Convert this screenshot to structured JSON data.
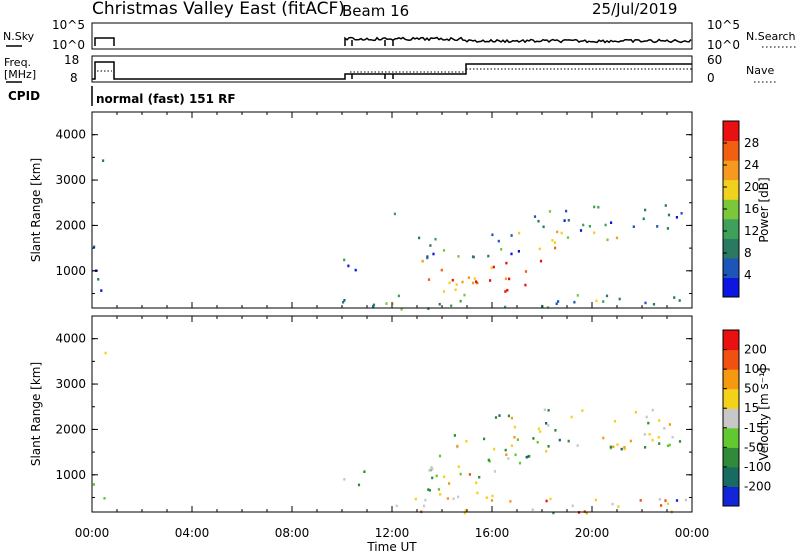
{
  "header": {
    "title": "Christmas Valley East (fitACF)",
    "beam": "Beam 16",
    "date": "25/Jul/2019"
  },
  "status_panels": {
    "nsky_label": "N.Sky",
    "nsky_ticks": [
      "10^5",
      "10^0"
    ],
    "nsearch_label": "N.Search",
    "nsearch_ticks": [
      "10^5",
      "10^0"
    ],
    "freq_label": "Freq.",
    "freq_unit": "[MHz]",
    "freq_ticks": [
      "18",
      "8"
    ],
    "nave_label": "Nave",
    "nave_ticks": [
      "60",
      "0"
    ],
    "cpid_label": "CPID",
    "cpid_value": "normal (fast) 151 RF"
  },
  "chart_data": [
    {
      "type": "heatmap",
      "name": "Power",
      "ylabel": "Slant Range [km]",
      "yticks": [
        "4000",
        "3000",
        "2000",
        "1000"
      ],
      "ylim": [
        180,
        4500
      ],
      "colorbar_label": "Power [dB]",
      "colorbar_ticks": [
        "28",
        "24",
        "20",
        "16",
        "12",
        "8",
        "4"
      ],
      "colors": [
        "#0b16e0",
        "#1f55b8",
        "#2a7a62",
        "#3fa05a",
        "#7ac83a",
        "#f0d21e",
        "#f59a1e",
        "#f06010",
        "#e81010"
      ],
      "regions": [
        {
          "t0": 0.3,
          "t1": 0.5,
          "r0": 2950,
          "r1": 3850,
          "level": 0.45
        },
        {
          "t0": 0.0,
          "t1": 0.5,
          "r0": 500,
          "r1": 1700,
          "level": 0.1
        },
        {
          "t0": 10.0,
          "t1": 10.9,
          "r0": 800,
          "r1": 1300,
          "level": 0.15
        },
        {
          "t0": 12.0,
          "t1": 12.6,
          "r0": 2150,
          "r1": 2450,
          "level": 0.2
        },
        {
          "t0": 13.0,
          "t1": 15.3,
          "r0": 500,
          "r1": 1300,
          "level": 0.8
        },
        {
          "t0": 15.3,
          "t1": 18.0,
          "r0": 500,
          "r1": 1300,
          "level": 0.85
        },
        {
          "t0": 13.0,
          "t1": 17.5,
          "r0": 1300,
          "r1": 1900,
          "level": 0.3
        },
        {
          "t0": 16.5,
          "t1": 21.0,
          "r0": 1500,
          "r1": 1900,
          "level": 0.55
        },
        {
          "t0": 17.5,
          "t1": 23.6,
          "r0": 1900,
          "r1": 2500,
          "level": 0.3
        },
        {
          "t0": 10.0,
          "t1": 24.0,
          "r0": 180,
          "r1": 500,
          "level": 0.35
        }
      ]
    },
    {
      "type": "heatmap",
      "name": "Velocity",
      "ylabel": "Slant Range [km]",
      "yticks": [
        "4000",
        "3000",
        "2000",
        "1000"
      ],
      "ylim": [
        180,
        4500
      ],
      "xlabel": "Time UT",
      "xticks": [
        "00:00",
        "04:00",
        "08:00",
        "12:00",
        "16:00",
        "20:00",
        "00:00"
      ],
      "xlim": [
        0,
        24
      ],
      "colorbar_label": "Velocity [m s⁻¹]",
      "colorbar_ticks": [
        "200",
        "100",
        "50",
        "15",
        "-15",
        "-50",
        "-100",
        "-200"
      ],
      "colors": [
        "#1226d8",
        "#1a6a64",
        "#2f8a3a",
        "#62c830",
        "#c8c8c8",
        "#f5d21a",
        "#f59a10",
        "#f05010",
        "#e81010"
      ],
      "regions": [
        {
          "t0": 0.3,
          "t1": 0.5,
          "r0": 2950,
          "r1": 3850,
          "level": 0.5
        },
        {
          "t0": 0.0,
          "t1": 0.5,
          "r0": 500,
          "r1": 1000,
          "level": 0.5
        },
        {
          "t0": 10.0,
          "t1": 10.9,
          "r0": 800,
          "r1": 1300,
          "level": 0.5
        },
        {
          "t0": 13.0,
          "t1": 18.0,
          "r0": 500,
          "r1": 1900,
          "level": 0.5
        },
        {
          "t0": 16.0,
          "t1": 23.6,
          "r0": 1500,
          "r1": 2500,
          "level": 0.5
        },
        {
          "t0": 10.0,
          "t1": 24.0,
          "r0": 180,
          "r1": 500,
          "level": 0.7
        }
      ]
    }
  ]
}
